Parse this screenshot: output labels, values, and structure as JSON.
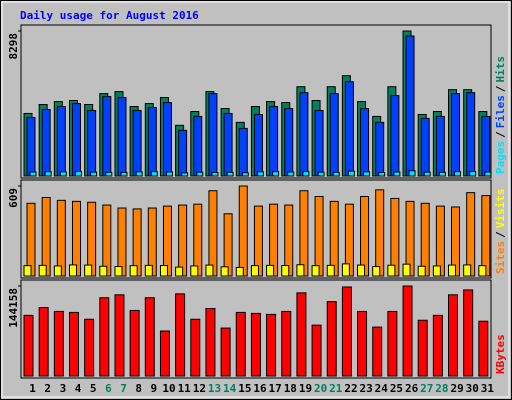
{
  "title": "Daily usage for August 2016",
  "categories": [
    "1",
    "2",
    "3",
    "4",
    "5",
    "6",
    "7",
    "8",
    "9",
    "10",
    "11",
    "12",
    "13",
    "14",
    "15",
    "16",
    "17",
    "18",
    "19",
    "20",
    "21",
    "22",
    "23",
    "24",
    "25",
    "26",
    "27",
    "28",
    "29",
    "30",
    "31"
  ],
  "weekend": [
    6,
    7,
    13,
    14,
    20,
    21,
    27,
    28
  ],
  "weekend_color": "#00805c",
  "separator": "/",
  "chart_data": [
    {
      "type": "bar",
      "ylim": [
        0,
        8298
      ],
      "yticks": [
        8298
      ],
      "series": [
        {
          "name": "Pages",
          "color": "#00e0ff",
          "values": [
            230,
            250,
            240,
            260,
            220,
            210,
            200,
            240,
            250,
            230,
            180,
            220,
            200,
            210,
            190,
            240,
            250,
            230,
            260,
            220,
            210,
            280,
            240,
            200,
            230,
            300,
            220,
            210,
            250,
            260,
            230
          ]
        },
        {
          "name": "Files",
          "color": "#0040ff",
          "values": [
            3350,
            3805,
            3975,
            4145,
            3750,
            4545,
            4490,
            3750,
            3920,
            4205,
            2615,
            3410,
            4715,
            3580,
            2725,
            3520,
            3975,
            3860,
            4770,
            3750,
            4715,
            5395,
            3860,
            3070,
            4600,
            8010,
            3295,
            3410,
            4715,
            4770,
            3410
          ]
        },
        {
          "name": "Hits",
          "color": "#00805c",
          "values": [
            3580,
            4090,
            4260,
            4320,
            4090,
            4715,
            4830,
            3975,
            4145,
            4490,
            2900,
            3690,
            4830,
            3860,
            3070,
            3975,
            4260,
            4205,
            5110,
            4320,
            5110,
            5740,
            4260,
            3410,
            5110,
            8298,
            3520,
            3690,
            4940,
            4940,
            3690
          ]
        }
      ]
    },
    {
      "type": "bar",
      "ylim": [
        0,
        609
      ],
      "yticks": [
        609
      ],
      "series": [
        {
          "name": "Sites",
          "color": "#ff8000",
          "values": [
            492,
            531,
            512,
            505,
            499,
            480,
            460,
            454,
            460,
            473,
            480,
            486,
            577,
            421,
            609,
            473,
            486,
            480,
            577,
            538,
            505,
            486,
            538,
            583,
            525,
            505,
            492,
            473,
            467,
            564,
            544
          ]
        },
        {
          "name": "Visits",
          "color": "#ffff00",
          "values": [
            70,
            72,
            68,
            75,
            74,
            66,
            64,
            70,
            72,
            71,
            60,
            68,
            74,
            62,
            58,
            70,
            72,
            71,
            76,
            70,
            72,
            82,
            74,
            64,
            73,
            80,
            66,
            68,
            74,
            75,
            70
          ]
        }
      ]
    },
    {
      "type": "bar",
      "ylim": [
        0,
        144158
      ],
      "yticks": [
        144158
      ],
      "series": [
        {
          "name": "KBytes",
          "color": "#ff0000",
          "values": [
            97150,
            109690,
            103420,
            101855,
            90890,
            125360,
            130060,
            104990,
            125360,
            72080,
            131630,
            90890,
            108120,
            76780,
            101855,
            100290,
            98720,
            103420,
            133195,
            81480,
            119090,
            142600,
            103420,
            78350,
            103420,
            144158,
            89320,
            97150,
            130060,
            137900,
            87750
          ]
        }
      ]
    }
  ]
}
